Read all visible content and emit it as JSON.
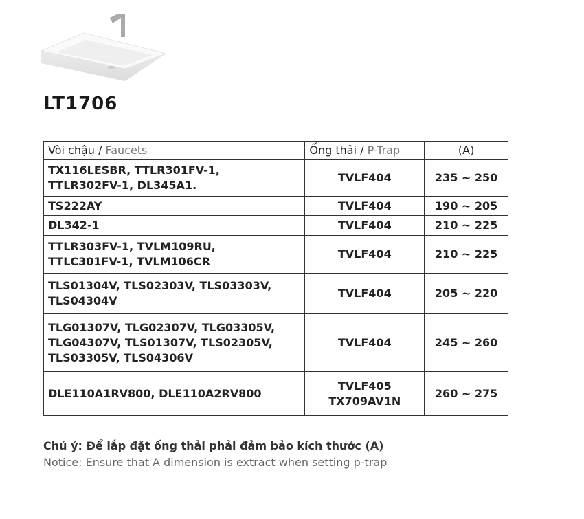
{
  "title": "LT1706",
  "table": {
    "headers": [
      {
        "vi": "Vòi chậu",
        "en": "Faucets"
      },
      {
        "vi": "Ống thải",
        "en": "P-Trap"
      },
      {
        "label": "(A)"
      }
    ],
    "rows": [
      {
        "faucets": [
          "TX116LESBR, TTLR301FV-1,",
          "TTLR302FV-1, DL345A1."
        ],
        "ptrap": [
          "TVLF404"
        ],
        "a": "235 ~ 250"
      },
      {
        "faucets": [
          "TS222AY"
        ],
        "ptrap": [
          "TVLF404"
        ],
        "a": "190 ~ 205"
      },
      {
        "faucets": [
          "DL342-1"
        ],
        "ptrap": [
          "TVLF404"
        ],
        "a": "210 ~ 225"
      },
      {
        "faucets": [
          "TTLR303FV-1, TVLM109RU,",
          "TTLC301FV-1, TVLM106CR"
        ],
        "ptrap": [
          "TVLF404"
        ],
        "a": "210 ~ 225"
      },
      {
        "faucets": [
          "TLS01304V, TLS02303V, TLS03303V,",
          "TLS04304V"
        ],
        "ptrap": [
          "TVLF404"
        ],
        "a": "205 ~ 220"
      },
      {
        "faucets": [
          "TLG01307V, TLG02307V, TLG03305V,",
          "TLG04307V, TLS01307V, TLS02305V,",
          "TLS03305V, TLS04306V"
        ],
        "ptrap": [
          "TVLF404"
        ],
        "a": "245 ~ 260"
      },
      {
        "faucets": [
          "DLE110A1RV800, DLE110A2RV800"
        ],
        "ptrap": [
          "TVLF405",
          "TX709AV1N"
        ],
        "a": "260 ~ 275"
      }
    ]
  },
  "notes": {
    "vi": "Chú ý: Để lắp đặt ống thải phải đảm bảo kích thước (A)",
    "en": "Notice: Ensure that A dimension is extract when setting p-trap"
  }
}
